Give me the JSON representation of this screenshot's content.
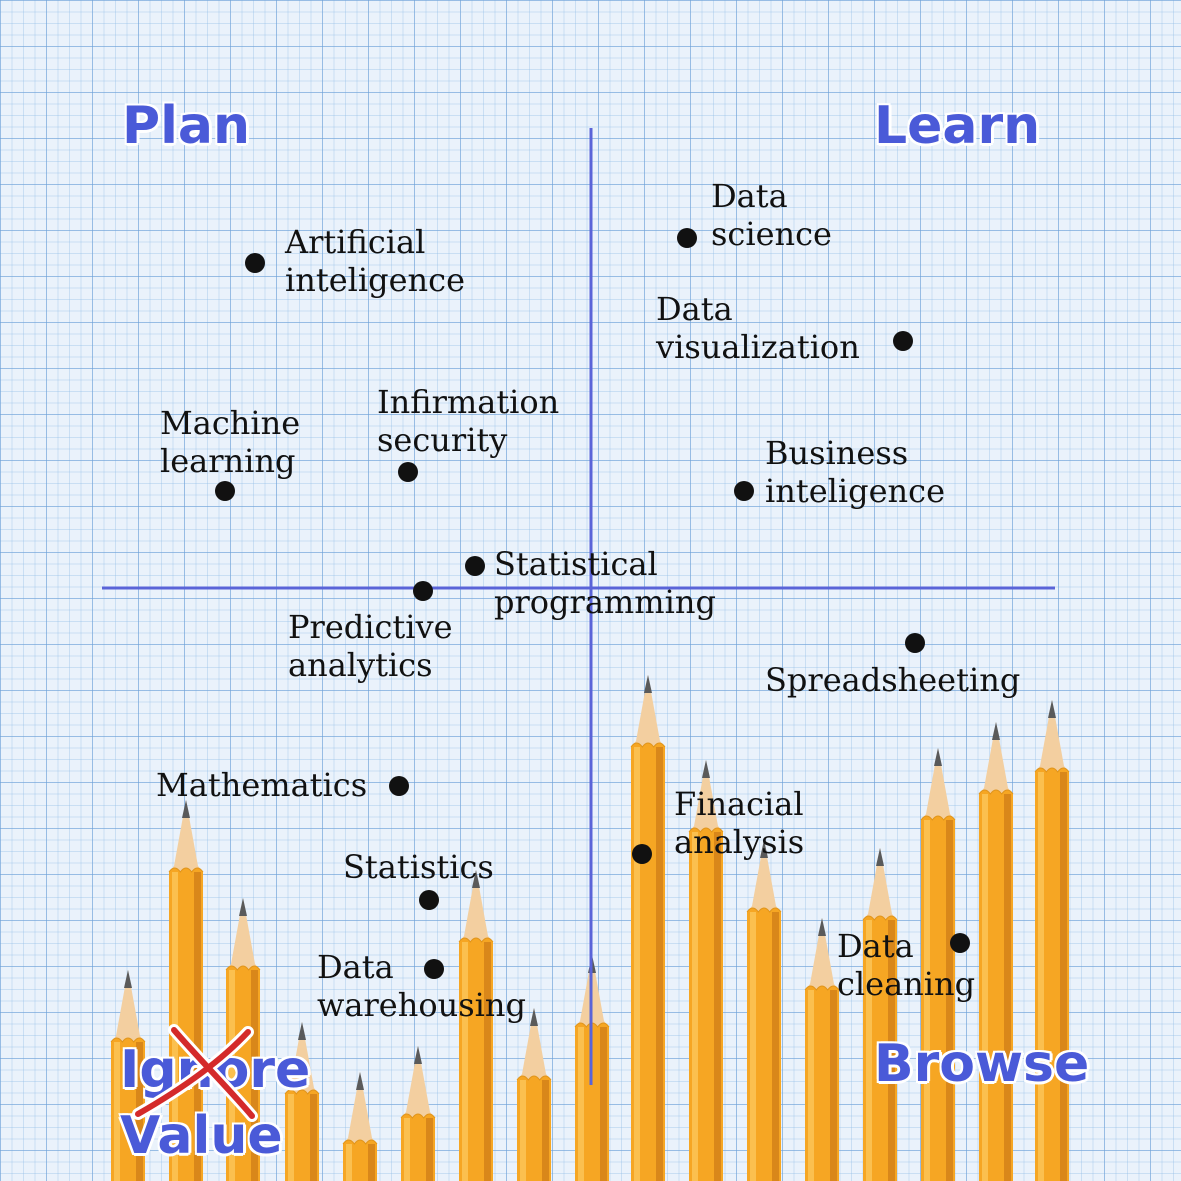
{
  "quadrants": {
    "plan": "Plan",
    "learn": "Learn",
    "ignore": "Ignore",
    "value": "Value",
    "browse": "Browse"
  },
  "items": [
    {
      "id": "artificial-intelligence",
      "line1": "Artificial",
      "line2": "inteligence"
    },
    {
      "id": "data-science",
      "line1": "Data",
      "line2": "science"
    },
    {
      "id": "data-visualization",
      "line1": "Data",
      "line2": "visualization"
    },
    {
      "id": "machine-learning",
      "line1": "Machine",
      "line2": "learning"
    },
    {
      "id": "information-security",
      "line1": "Infirmation",
      "line2": "security"
    },
    {
      "id": "business-intelligence",
      "line1": "Business",
      "line2": "inteligence"
    },
    {
      "id": "statistical-programming",
      "line1": "Statistical",
      "line2": "programming"
    },
    {
      "id": "predictive-analytics",
      "line1": "Predictive",
      "line2": "analytics"
    },
    {
      "id": "spreadsheeting",
      "line1": "Spreadsheeting"
    },
    {
      "id": "mathematics",
      "line1": "Mathematics"
    },
    {
      "id": "financial-analysis",
      "line1": "Finacial",
      "line2": "analysis"
    },
    {
      "id": "statistics",
      "line1": "Statistics"
    },
    {
      "id": "data-warehousing",
      "line1": "Data",
      "line2": "warehousing"
    },
    {
      "id": "data-cleaning",
      "line1": "Data",
      "line2": "cleaning"
    }
  ],
  "colors": {
    "axis": "#5a64d8",
    "quadrant_text": "#4a5ad8",
    "pencil_body": "#f6a623",
    "cross": "#d42a2a"
  }
}
